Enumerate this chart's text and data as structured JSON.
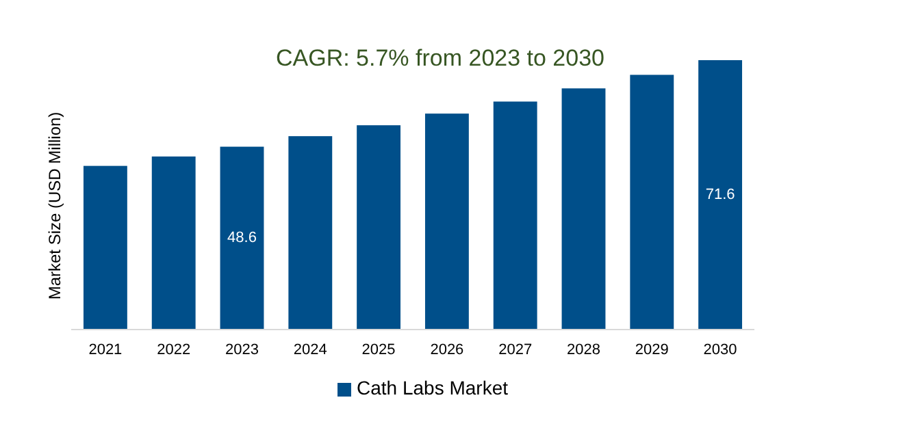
{
  "chart_data": {
    "type": "bar",
    "title": "CAGR: 5.7% from 2023 to 2030",
    "ylabel": "Market Size (USD Million)",
    "categories": [
      "2021",
      "2022",
      "2023",
      "2024",
      "2025",
      "2026",
      "2027",
      "2028",
      "2029",
      "2030"
    ],
    "series": [
      {
        "name": "Cath Labs Market",
        "color": "#004f8a",
        "values": [
          43.5,
          46,
          48.6,
          51.4,
          54.3,
          57.4,
          60.6,
          64.1,
          67.7,
          71.6
        ],
        "value_labels": [
          null,
          null,
          "48.6",
          null,
          null,
          null,
          null,
          null,
          null,
          "71.6"
        ]
      }
    ],
    "legend": "bottom",
    "tick_labels": "x"
  }
}
